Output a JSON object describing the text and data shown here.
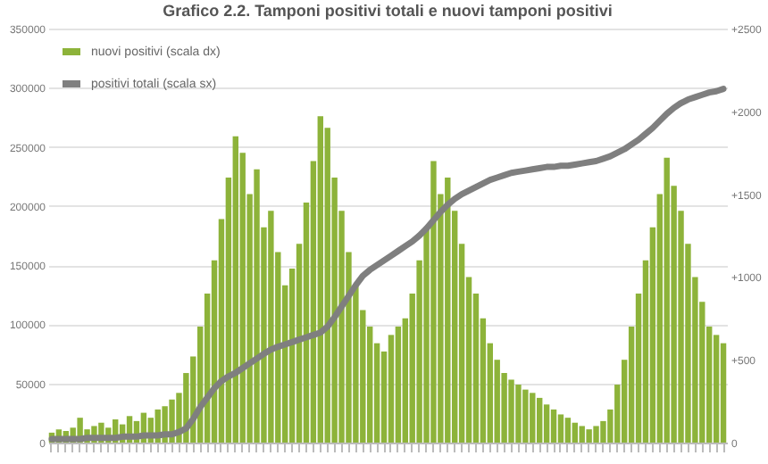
{
  "chart_data": {
    "type": "bar",
    "title": "Grafico 2.2. Tamponi positivi totali e nuovi tamponi positivi",
    "categories": [
      null,
      null,
      null,
      null,
      null,
      null,
      null,
      null,
      null,
      null,
      null,
      null,
      null,
      null,
      null,
      null,
      null,
      null,
      null,
      null,
      null,
      null,
      null,
      null,
      null,
      null,
      null,
      null,
      null,
      null,
      null,
      null,
      null,
      null,
      null,
      null,
      null,
      null,
      null,
      null,
      null,
      null,
      null,
      null,
      null,
      null,
      null,
      null,
      null,
      null,
      null,
      null,
      null,
      null,
      null,
      null,
      null,
      null,
      null,
      null,
      null,
      null,
      null,
      null,
      null,
      null,
      null,
      null,
      null,
      null,
      null,
      null,
      null,
      null,
      null,
      null,
      null,
      null,
      null,
      null,
      null,
      null,
      null,
      null,
      null,
      null,
      null,
      null,
      null,
      null,
      null,
      null,
      null,
      null,
      null,
      null
    ],
    "series": [
      {
        "name": "nuovi positivi (scala dx)",
        "axis": "y2",
        "color": "#8db33a",
        "values": [
          60,
          80,
          70,
          90,
          150,
          80,
          100,
          120,
          90,
          140,
          110,
          160,
          130,
          180,
          150,
          200,
          220,
          260,
          300,
          420,
          520,
          700,
          900,
          1100,
          1350,
          1600,
          1850,
          1750,
          1500,
          1650,
          1300,
          1400,
          1150,
          950,
          1050,
          1200,
          1450,
          1700,
          1970,
          1900,
          1600,
          1400,
          1150,
          950,
          800,
          700,
          600,
          550,
          650,
          700,
          750,
          900,
          1100,
          1300,
          1700,
          1500,
          1600,
          1400,
          1200,
          1000,
          900,
          750,
          600,
          500,
          420,
          380,
          350,
          320,
          300,
          270,
          230,
          200,
          170,
          150,
          120,
          100,
          80,
          100,
          130,
          200,
          350,
          500,
          700,
          900,
          1100,
          1300,
          1500,
          1720,
          1550,
          1400,
          1200,
          1000,
          850,
          700,
          650,
          600
        ]
      },
      {
        "name": "positivi totali (scala sx)",
        "type": "line",
        "color": "#7f7f7f",
        "values": [
          3000,
          3000,
          3000,
          3000,
          3000,
          4000,
          4000,
          4000,
          4000,
          4000,
          5000,
          5000,
          5000,
          6000,
          6000,
          6000,
          7000,
          7000,
          9000,
          12000,
          20000,
          30000,
          38000,
          46000,
          52000,
          56000,
          59000,
          63000,
          67000,
          71000,
          75000,
          78600,
          81000,
          83000,
          85000,
          87000,
          89000,
          91000,
          93000,
          98000,
          106000,
          115000,
          124000,
          133000,
          141000,
          146000,
          150000,
          154000,
          158000,
          162000,
          166000,
          170000,
          175000,
          181000,
          188000,
          195000,
          201000,
          206000,
          210000,
          213000,
          216000,
          219000,
          222000,
          224000,
          226000,
          228000,
          229000,
          230000,
          231000,
          232000,
          233000,
          233000,
          234000,
          234000,
          235000,
          236000,
          237000,
          238000,
          240000,
          242000,
          245000,
          248000,
          252000,
          256000,
          261000,
          266000,
          272000,
          278000,
          283000,
          287000,
          290000,
          292000,
          294000,
          296000,
          297000,
          299000
        ]
      }
    ],
    "ylim": [
      0,
      350000
    ],
    "yticks": [
      0,
      50000,
      100000,
      150000,
      200000,
      250000,
      300000,
      350000
    ],
    "y2lim": [
      0,
      2500
    ],
    "y2ticks": [
      0,
      {
        "value": 500,
        "label": "+500"
      },
      {
        "value": 1000,
        "label": "+1000"
      },
      {
        "value": 1500,
        "label": "+1500"
      },
      {
        "value": 2000,
        "label": "+2000"
      },
      {
        "value": 2500,
        "label": "+2500"
      }
    ],
    "grid": "y",
    "legend": "top left"
  }
}
